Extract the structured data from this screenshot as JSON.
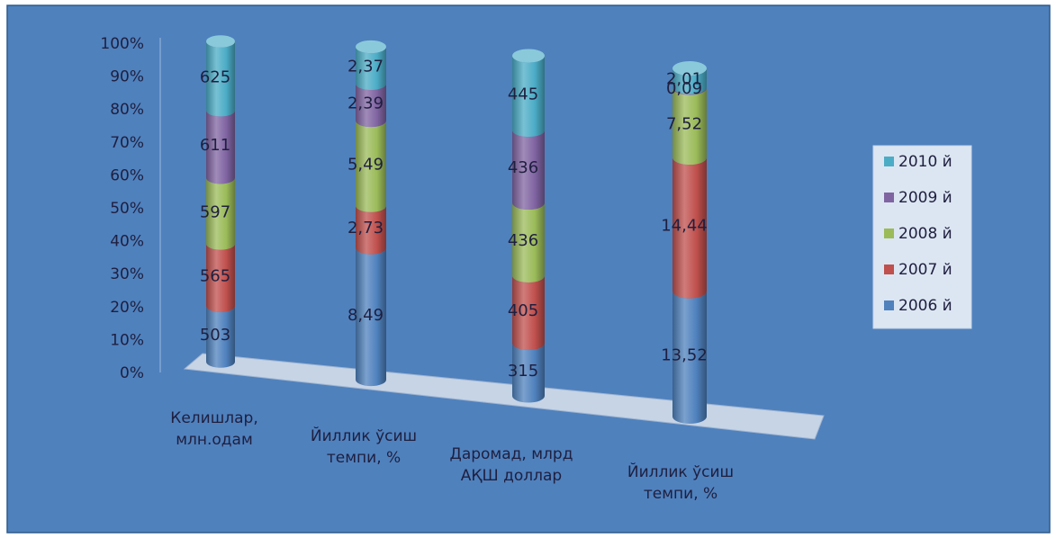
{
  "chart_data": {
    "type": "bar",
    "stacked": "percent",
    "style": "3d-cylinder",
    "categories": [
      "Келишлар, млн.одам",
      "Йиллик ўсиш темпи, %",
      "Даромад, млрд АҚШ доллар",
      "Йиллик ўсиш темпи, %"
    ],
    "series": [
      {
        "name": "2006 й",
        "color": "#4F81BD",
        "values": [
          503,
          8.49,
          315,
          13.52
        ],
        "labels": [
          "503",
          "8,49",
          "315",
          "13,52"
        ]
      },
      {
        "name": "2007 й",
        "color": "#C0504D",
        "values": [
          565,
          2.73,
          405,
          14.44
        ],
        "labels": [
          "565",
          "2,73",
          "405",
          "14,44"
        ]
      },
      {
        "name": "2008 й",
        "color": "#9BBB59",
        "values": [
          597,
          5.49,
          436,
          7.52
        ],
        "labels": [
          "597",
          "5,49",
          "436",
          "7,52"
        ]
      },
      {
        "name": "2009 й",
        "color": "#8064A2",
        "values": [
          611,
          2.39,
          436,
          0.09
        ],
        "labels": [
          "611",
          "2,39",
          "436",
          "0,09"
        ]
      },
      {
        "name": "2010 й",
        "color": "#4BACC6",
        "values": [
          625,
          2.37,
          445,
          2.01
        ],
        "labels": [
          "625",
          "2,37",
          "445",
          "2,01"
        ]
      }
    ],
    "y_ticks": [
      "0%",
      "10%",
      "20%",
      "30%",
      "40%",
      "50%",
      "60%",
      "70%",
      "80%",
      "90%",
      "100%"
    ],
    "ylim": [
      0,
      100
    ],
    "title": "",
    "xlabel": "",
    "ylabel": "",
    "grid": false,
    "legend_position": "right",
    "background_color": "#4F81BD",
    "floor_color": "#C6D4E6",
    "text_color": "#1F1F3F"
  }
}
